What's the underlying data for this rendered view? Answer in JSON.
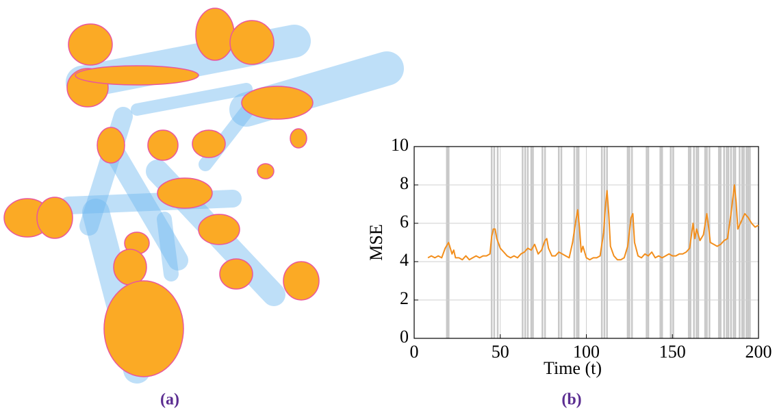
{
  "captions": [
    "(a)",
    "(b)"
  ],
  "chart_data": {
    "type": "line",
    "xlabel": "Time (t)",
    "ylabel": "MSE",
    "color": "#f28e1c",
    "grid": true,
    "xlim": [
      0,
      200
    ],
    "xticks": [
      0,
      50,
      100,
      150,
      200
    ],
    "ylim": [
      0,
      10
    ],
    "yticks": [
      0,
      2,
      4,
      6,
      8,
      10
    ],
    "highlight_x": [
      19,
      20,
      45,
      46.5,
      48.5,
      63,
      64.5,
      66,
      68,
      69,
      74.5,
      76,
      84,
      85.5,
      93,
      94.5,
      95.5,
      109,
      110.5,
      112,
      124,
      125,
      126.5,
      135,
      136,
      143,
      144,
      149,
      150.5,
      159.5,
      160.5,
      162.5,
      164,
      165,
      169,
      170,
      171.5,
      177,
      178,
      180,
      181.5,
      182.5,
      184,
      185.5,
      186.5,
      189,
      190.5,
      191.5,
      193,
      194,
      195
    ],
    "x": [
      8,
      10,
      12,
      14,
      16,
      18,
      20,
      22,
      23,
      24,
      26,
      28,
      30,
      32,
      34,
      36,
      38,
      40,
      42,
      44,
      45,
      46,
      47,
      48,
      50,
      52,
      54,
      56,
      58,
      60,
      62,
      64,
      66,
      68,
      70,
      72,
      74,
      76,
      77,
      78,
      80,
      82,
      84,
      86,
      88,
      90,
      92,
      94,
      95,
      96,
      97,
      98,
      100,
      102,
      104,
      106,
      108,
      110,
      111,
      112,
      113,
      114,
      116,
      118,
      120,
      122,
      124,
      126,
      127,
      128,
      130,
      132,
      134,
      136,
      138,
      140,
      142,
      144,
      146,
      148,
      150,
      152,
      154,
      156,
      158,
      160,
      162,
      163,
      164,
      166,
      168,
      170,
      171,
      172,
      174,
      176,
      178,
      180,
      182,
      184,
      186,
      187,
      188,
      190,
      192,
      194,
      196,
      198,
      200
    ],
    "values": [
      4.2,
      4.3,
      4.2,
      4.3,
      4.2,
      4.7,
      5.0,
      4.4,
      4.6,
      4.2,
      4.2,
      4.1,
      4.3,
      4.1,
      4.2,
      4.3,
      4.2,
      4.3,
      4.3,
      4.4,
      5.3,
      5.7,
      5.7,
      5.2,
      4.7,
      4.5,
      4.3,
      4.2,
      4.3,
      4.2,
      4.4,
      4.5,
      4.7,
      4.6,
      4.9,
      4.4,
      4.6,
      5.1,
      5.2,
      4.7,
      4.3,
      4.3,
      4.5,
      4.4,
      4.3,
      4.2,
      5.0,
      6.2,
      6.7,
      5.8,
      4.5,
      4.8,
      4.2,
      4.1,
      4.2,
      4.2,
      4.3,
      5.5,
      6.8,
      7.7,
      6.5,
      4.8,
      4.3,
      4.1,
      4.1,
      4.2,
      4.8,
      6.3,
      6.5,
      5.0,
      4.3,
      4.2,
      4.4,
      4.3,
      4.5,
      4.2,
      4.3,
      4.2,
      4.3,
      4.4,
      4.3,
      4.3,
      4.4,
      4.4,
      4.5,
      4.7,
      6.0,
      5.2,
      5.7,
      5.1,
      5.4,
      6.5,
      5.8,
      5.0,
      4.9,
      4.8,
      4.9,
      5.1,
      5.2,
      6.5,
      8.0,
      7.1,
      5.7,
      6.1,
      6.5,
      6.3,
      6.0,
      5.8,
      5.9
    ]
  }
}
